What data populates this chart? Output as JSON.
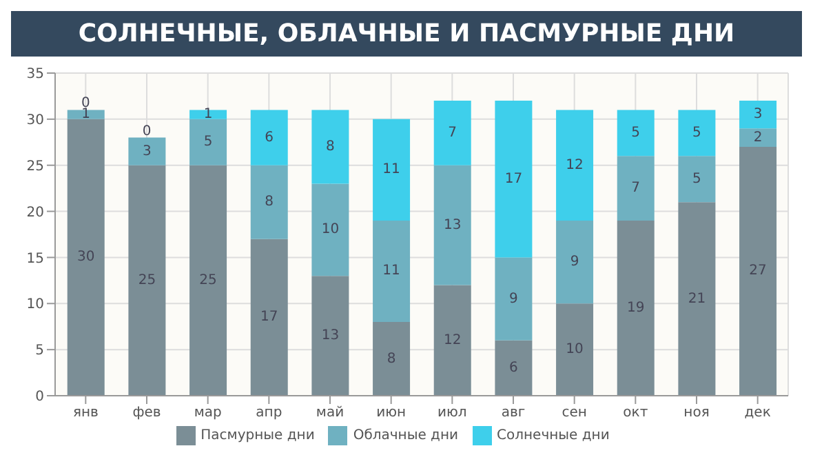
{
  "chart_data": {
    "type": "bar",
    "title": "СОЛНЕЧНЫЕ, ОБЛАЧНЫЕ И ПАСМУРНЫЕ ДНИ",
    "categories": [
      "янв",
      "фев",
      "мар",
      "апр",
      "май",
      "июн",
      "июл",
      "авг",
      "сен",
      "окт",
      "ноя",
      "дек"
    ],
    "series": [
      {
        "name": "Пасмурные дни",
        "color": "#7b8e96",
        "values": [
          30,
          25,
          25,
          17,
          13,
          8,
          12,
          6,
          10,
          19,
          21,
          27
        ]
      },
      {
        "name": "Облачные дни",
        "color": "#6fb1c1",
        "values": [
          1,
          3,
          5,
          8,
          10,
          11,
          13,
          9,
          9,
          7,
          5,
          2
        ]
      },
      {
        "name": "Солнечные дни",
        "color": "#3ecfeb",
        "values": [
          0,
          0,
          1,
          6,
          8,
          11,
          7,
          17,
          12,
          5,
          5,
          3
        ]
      }
    ],
    "stacked": true,
    "ylim": [
      0,
      35
    ],
    "yticks": [
      0,
      5,
      10,
      15,
      20,
      25,
      30,
      35
    ],
    "grid": true,
    "legend": "bottom",
    "data_labels": true
  }
}
